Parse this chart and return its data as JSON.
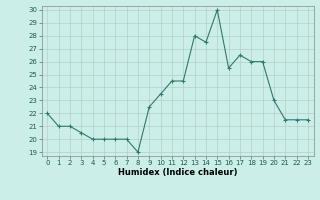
{
  "x": [
    0,
    1,
    2,
    3,
    4,
    5,
    6,
    7,
    8,
    9,
    10,
    11,
    12,
    13,
    14,
    15,
    16,
    17,
    18,
    19,
    20,
    21,
    22,
    23
  ],
  "y": [
    22,
    21,
    21,
    20.5,
    20,
    20,
    20,
    20,
    19,
    22.5,
    23.5,
    24.5,
    24.5,
    28,
    27.5,
    30,
    25.5,
    26.5,
    26,
    26,
    23,
    21.5,
    21.5,
    21.5
  ],
  "line_color": "#2d7a6e",
  "bg_color": "#cceee8",
  "grid_color": "#b0c8c4",
  "xlabel": "Humidex (Indice chaleur)",
  "ylim_min": 18.7,
  "ylim_max": 30.3,
  "xlim_min": -0.5,
  "xlim_max": 23.5,
  "yticks": [
    19,
    20,
    21,
    22,
    23,
    24,
    25,
    26,
    27,
    28,
    29,
    30
  ],
  "xticks": [
    0,
    1,
    2,
    3,
    4,
    5,
    6,
    7,
    8,
    9,
    10,
    11,
    12,
    13,
    14,
    15,
    16,
    17,
    18,
    19,
    20,
    21,
    22,
    23
  ],
  "tick_fontsize": 5,
  "xlabel_fontsize": 6,
  "marker_size": 2,
  "line_width": 0.8
}
